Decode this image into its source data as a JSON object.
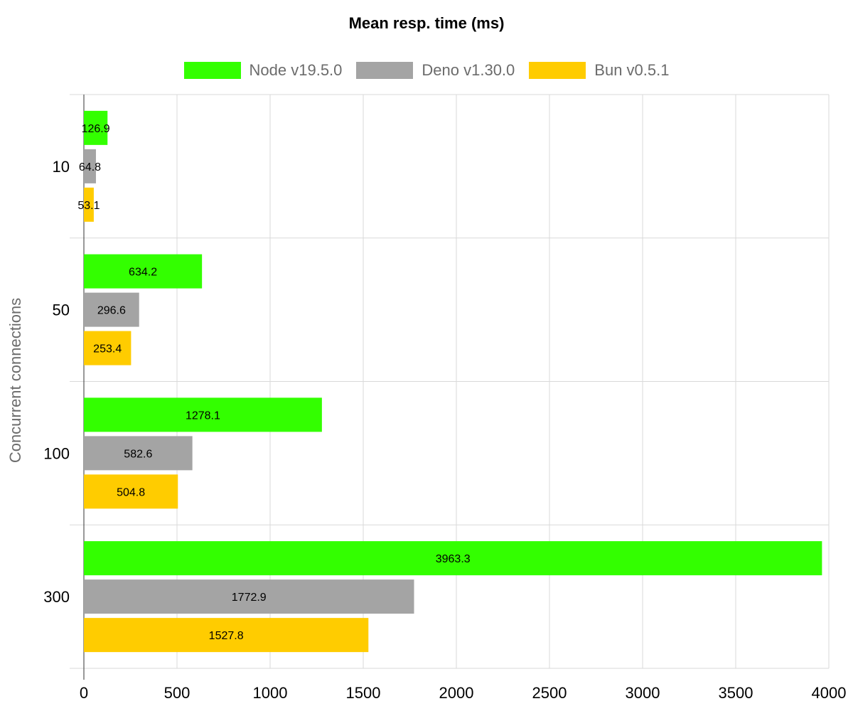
{
  "chart_data": {
    "type": "bar",
    "orientation": "horizontal",
    "title": "Mean resp. time (ms)",
    "ylabel": "Concurrent connections",
    "xlabel": "",
    "categories": [
      "10",
      "50",
      "100",
      "300"
    ],
    "series": [
      {
        "name": "Node v19.5.0",
        "color": "#33ff00",
        "values": [
          126.9,
          634.2,
          1278.1,
          3963.3
        ]
      },
      {
        "name": "Deno v1.30.0",
        "color": "#a4a4a4",
        "values": [
          64.8,
          296.6,
          582.6,
          1772.9
        ]
      },
      {
        "name": "Bun v0.5.1",
        "color": "#ffcc00",
        "values": [
          53.1,
          253.4,
          504.8,
          1527.8
        ]
      }
    ],
    "xlim": [
      0,
      4000
    ],
    "x_ticks": [
      "0",
      "500",
      "1000",
      "1500",
      "2000",
      "2500",
      "3000",
      "3500",
      "4000"
    ],
    "grid": true,
    "legend_position": "top"
  }
}
